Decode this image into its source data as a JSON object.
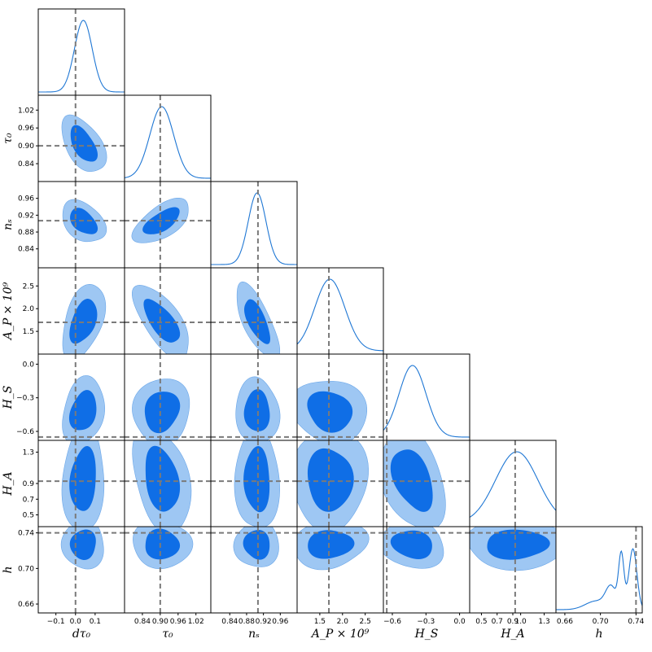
{
  "chart_data": {
    "type": "corner",
    "contour_colors": {
      "inner": "#0f6ee6",
      "outer": "#9ec7f3",
      "line": "#1f77d4",
      "truth": "#7a7a7a"
    },
    "parameters": [
      {
        "key": "dtau0",
        "label": "dτ₀",
        "range": [
          -0.19,
          0.25
        ],
        "ticks": [
          -0.1,
          0.0,
          0.1
        ],
        "tick_labels": [
          "−0.1",
          "0.0",
          "0.1"
        ],
        "truth": 0.0,
        "mean": 0.04,
        "sd": 0.045
      },
      {
        "key": "tau0",
        "label": "τ₀",
        "range": [
          0.78,
          1.07
        ],
        "ticks": [
          0.84,
          0.9,
          0.96,
          1.02
        ],
        "tick_labels": [
          "0.84",
          "0.90",
          "0.96",
          "1.02"
        ],
        "truth": 0.9,
        "mean": 0.905,
        "sd": 0.04
      },
      {
        "key": "ns",
        "label": "nₛ",
        "range": [
          0.795,
          1.0
        ],
        "ticks": [
          0.84,
          0.88,
          0.92,
          0.96
        ],
        "tick_labels": [
          "0.84",
          "0.88",
          "0.92",
          "0.96"
        ],
        "truth": 0.907,
        "mean": 0.905,
        "sd": 0.021
      },
      {
        "key": "AP",
        "label": "A_P × 10⁹",
        "range": [
          1.0,
          2.9
        ],
        "ticks": [
          1.5,
          2.0,
          2.5
        ],
        "tick_labels": [
          "1.5",
          "2.0",
          "2.5"
        ],
        "truth": 1.7,
        "mean": 1.72,
        "sd": 0.33
      },
      {
        "key": "HS",
        "label": "H_S",
        "range": [
          -0.68,
          0.09
        ],
        "ticks": [
          -0.6,
          -0.3,
          0.0
        ],
        "tick_labels": [
          "−0.6",
          "−0.3",
          "0.0"
        ],
        "truth": -0.65,
        "mean": -0.42,
        "sd": 0.12
      },
      {
        "key": "HA",
        "label": "H_A",
        "range": [
          0.35,
          1.45
        ],
        "ticks": [
          0.5,
          0.7,
          0.9,
          1.0,
          1.3
        ],
        "tick_labels": [
          "0.5",
          "0.7",
          "0.9",
          "1.0",
          "1.3"
        ],
        "truth": 0.93,
        "mean": 0.95,
        "sd": 0.27
      },
      {
        "key": "h",
        "label": "h",
        "range": [
          0.65,
          0.747
        ],
        "ticks": [
          0.66,
          0.7,
          0.74
        ],
        "tick_labels": [
          "0.66",
          "0.70",
          "0.74"
        ],
        "truth": 0.74,
        "mean": 0.727,
        "sd": 0.011
      }
    ],
    "x_tick_labels": {
      "dtau0": [
        "−0.1",
        "0.0",
        "0.1"
      ],
      "tau0": [
        "0.84",
        "0.90",
        "0.96",
        "1.02"
      ],
      "ns": [
        "0.84",
        "0.88",
        "0.92",
        "0.96"
      ],
      "AP": [
        "1.5",
        "2.0",
        "2.5"
      ],
      "HS": [
        "−0.6",
        "−0.3",
        "0.0"
      ],
      "HA": [
        "0.5",
        "0.7",
        "0.9",
        "1.0",
        "1.3"
      ],
      "h": [
        "0.66",
        "0.70",
        "0.74"
      ]
    },
    "y_tick_labels": {
      "tau0": [
        "0.84",
        "0.90",
        "0.96",
        "1.02"
      ],
      "ns": [
        "0.84",
        "0.88",
        "0.92",
        "0.96"
      ],
      "AP": [
        "1.5",
        "2.0",
        "2.5"
      ],
      "HS": [
        "−0.6",
        "−0.3",
        "0.0"
      ],
      "HA": [
        "0.5",
        "0.7",
        "0.9",
        "1.3"
      ],
      "h": [
        "0.66",
        "0.70",
        "0.74"
      ]
    },
    "correlations": {
      "1-0": -0.5,
      "2-0": -0.4,
      "2-1": 0.6,
      "3-0": 0.4,
      "3-1": -0.7,
      "3-2": -0.7,
      "4-0": 0.2,
      "4-1": 0.1,
      "4-2": 0.0,
      "4-3": -0.1,
      "5-0": 0.1,
      "5-1": -0.3,
      "5-2": 0.0,
      "5-3": 0.0,
      "5-4": -0.4,
      "6-0": 0.0,
      "6-1": 0.0,
      "6-2": 0.0,
      "6-3": 0.1,
      "6-4": -0.2,
      "6-5": 0.0
    }
  }
}
